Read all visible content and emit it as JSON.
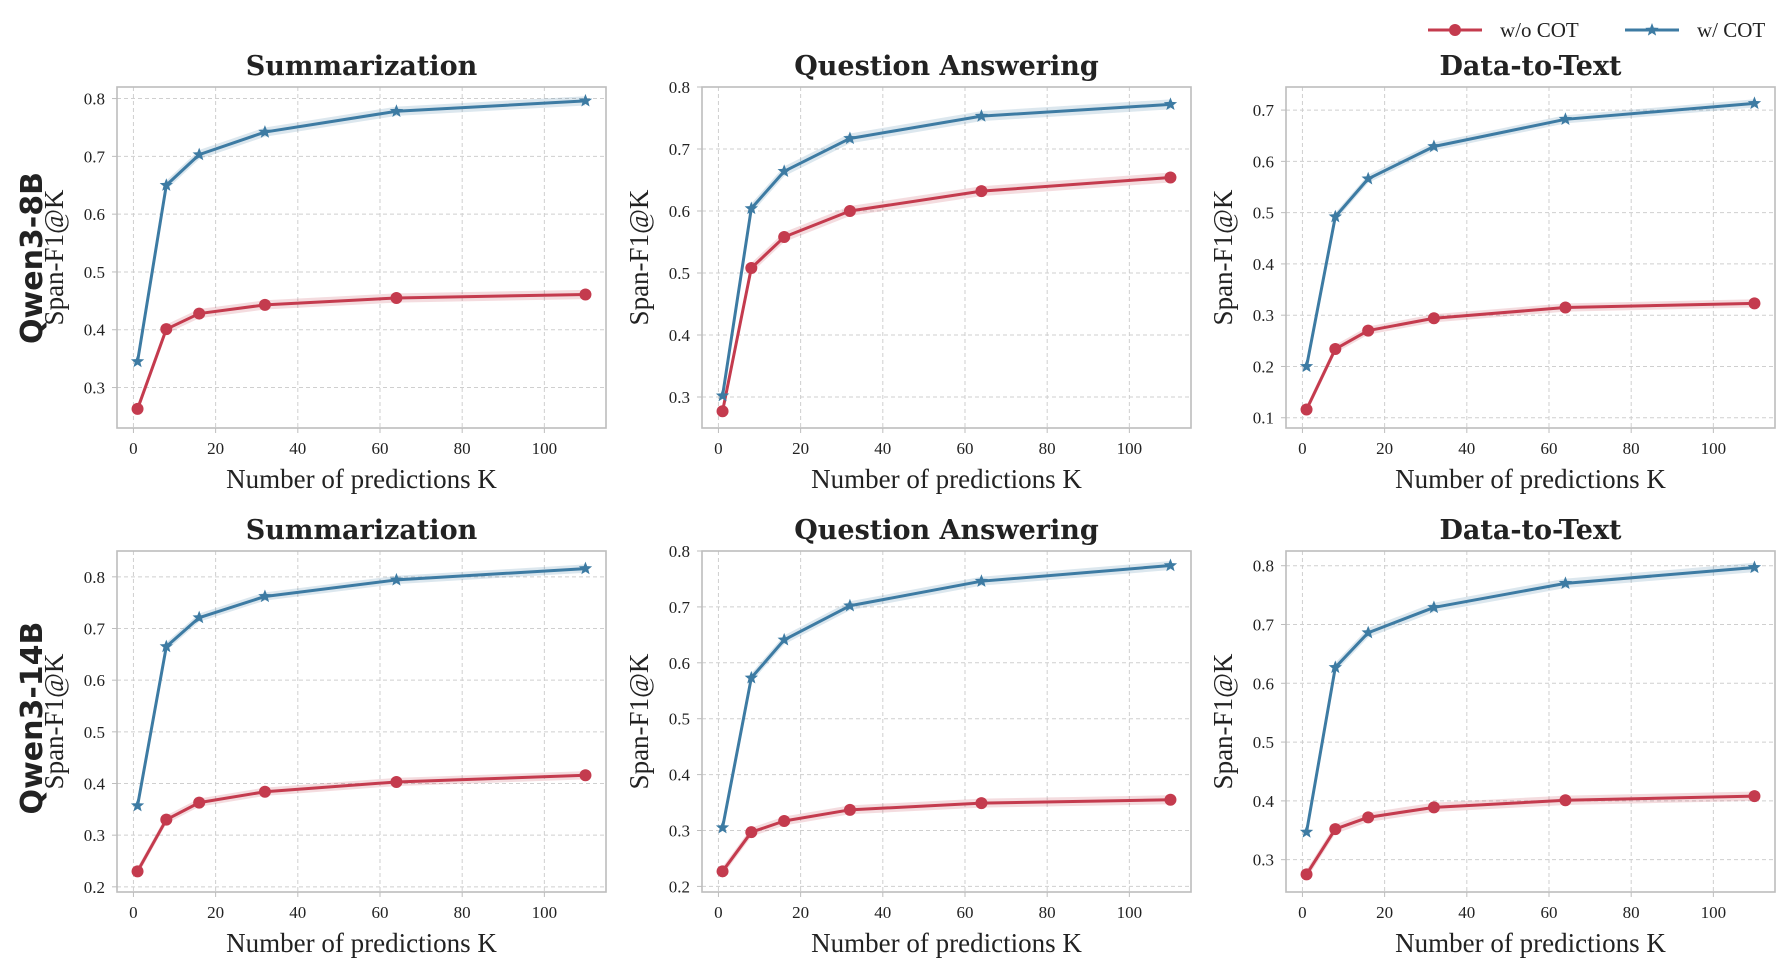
{
  "legend": [
    {
      "name": "w/o COT",
      "color": "#c43b4e",
      "marker": "circle"
    },
    {
      "name": "w/ COT",
      "color": "#3d7ba3",
      "marker": "star"
    }
  ],
  "rows": [
    "Qwen3-8B",
    "Qwen3-14B"
  ],
  "chart_data": [
    {
      "type": "line",
      "title": "Summarization",
      "xlabel": "Number of predictions K",
      "ylabel": "Span-F1@K",
      "x": [
        1,
        8,
        16,
        32,
        64,
        110
      ],
      "xlim": [
        -4,
        115
      ],
      "ylim": [
        0.23,
        0.82
      ],
      "xticks": [
        0,
        20,
        40,
        60,
        80,
        100
      ],
      "yticks": [
        0.3,
        0.4,
        0.5,
        0.6,
        0.7,
        0.8
      ],
      "series": [
        {
          "name": "w/o COT",
          "values": [
            0.263,
            0.401,
            0.428,
            0.443,
            0.455,
            0.461
          ]
        },
        {
          "name": "w/ COT",
          "values": [
            0.345,
            0.65,
            0.703,
            0.742,
            0.778,
            0.796
          ]
        }
      ]
    },
    {
      "type": "line",
      "title": "Question Answering",
      "xlabel": "Number of predictions K",
      "ylabel": "Span-F1@K",
      "x": [
        1,
        8,
        16,
        32,
        64,
        110
      ],
      "xlim": [
        -4,
        115
      ],
      "ylim": [
        0.25,
        0.8
      ],
      "xticks": [
        0,
        20,
        40,
        60,
        80,
        100
      ],
      "yticks": [
        0.3,
        0.4,
        0.5,
        0.6,
        0.7,
        0.8
      ],
      "series": [
        {
          "name": "w/o COT",
          "values": [
            0.277,
            0.508,
            0.558,
            0.6,
            0.632,
            0.654
          ]
        },
        {
          "name": "w/ COT",
          "values": [
            0.302,
            0.604,
            0.664,
            0.717,
            0.753,
            0.772
          ]
        }
      ]
    },
    {
      "type": "line",
      "title": "Data-to-Text",
      "xlabel": "Number of predictions K",
      "ylabel": "Span-F1@K",
      "x": [
        1,
        8,
        16,
        32,
        64,
        110
      ],
      "xlim": [
        -4,
        115
      ],
      "ylim": [
        0.08,
        0.745
      ],
      "xticks": [
        0,
        20,
        40,
        60,
        80,
        100
      ],
      "yticks": [
        0.1,
        0.2,
        0.3,
        0.4,
        0.5,
        0.6,
        0.7
      ],
      "series": [
        {
          "name": "w/o COT",
          "values": [
            0.116,
            0.234,
            0.27,
            0.294,
            0.315,
            0.323
          ]
        },
        {
          "name": "w/ COT",
          "values": [
            0.2,
            0.492,
            0.566,
            0.629,
            0.682,
            0.713
          ]
        }
      ]
    },
    {
      "type": "line",
      "title": "Summarization",
      "xlabel": "Number of predictions K",
      "ylabel": "Span-F1@K",
      "x": [
        1,
        8,
        16,
        32,
        64,
        110
      ],
      "xlim": [
        -4,
        115
      ],
      "ylim": [
        0.19,
        0.85
      ],
      "xticks": [
        0,
        20,
        40,
        60,
        80,
        100
      ],
      "yticks": [
        0.2,
        0.3,
        0.4,
        0.5,
        0.6,
        0.7,
        0.8
      ],
      "series": [
        {
          "name": "w/o COT",
          "values": [
            0.23,
            0.33,
            0.363,
            0.384,
            0.403,
            0.416
          ]
        },
        {
          "name": "w/ COT",
          "values": [
            0.357,
            0.665,
            0.721,
            0.762,
            0.794,
            0.816
          ]
        }
      ]
    },
    {
      "type": "line",
      "title": "Question Answering",
      "xlabel": "Number of predictions K",
      "ylabel": "Span-F1@K",
      "x": [
        1,
        8,
        16,
        32,
        64,
        110
      ],
      "xlim": [
        -4,
        115
      ],
      "ylim": [
        0.19,
        0.8
      ],
      "xticks": [
        0,
        20,
        40,
        60,
        80,
        100
      ],
      "yticks": [
        0.2,
        0.3,
        0.4,
        0.5,
        0.6,
        0.7,
        0.8
      ],
      "series": [
        {
          "name": "w/o COT",
          "values": [
            0.227,
            0.297,
            0.317,
            0.337,
            0.349,
            0.355
          ]
        },
        {
          "name": "w/ COT",
          "values": [
            0.305,
            0.573,
            0.641,
            0.702,
            0.746,
            0.774
          ]
        }
      ]
    },
    {
      "type": "line",
      "title": "Data-to-Text",
      "xlabel": "Number of predictions K",
      "ylabel": "Span-F1@K",
      "x": [
        1,
        8,
        16,
        32,
        64,
        110
      ],
      "xlim": [
        -4,
        115
      ],
      "ylim": [
        0.245,
        0.825
      ],
      "xticks": [
        0,
        20,
        40,
        60,
        80,
        100
      ],
      "yticks": [
        0.3,
        0.4,
        0.5,
        0.6,
        0.7,
        0.8
      ],
      "series": [
        {
          "name": "w/o COT",
          "values": [
            0.275,
            0.352,
            0.372,
            0.389,
            0.401,
            0.408
          ]
        },
        {
          "name": "w/ COT",
          "values": [
            0.347,
            0.627,
            0.686,
            0.729,
            0.77,
            0.797
          ]
        }
      ]
    }
  ]
}
